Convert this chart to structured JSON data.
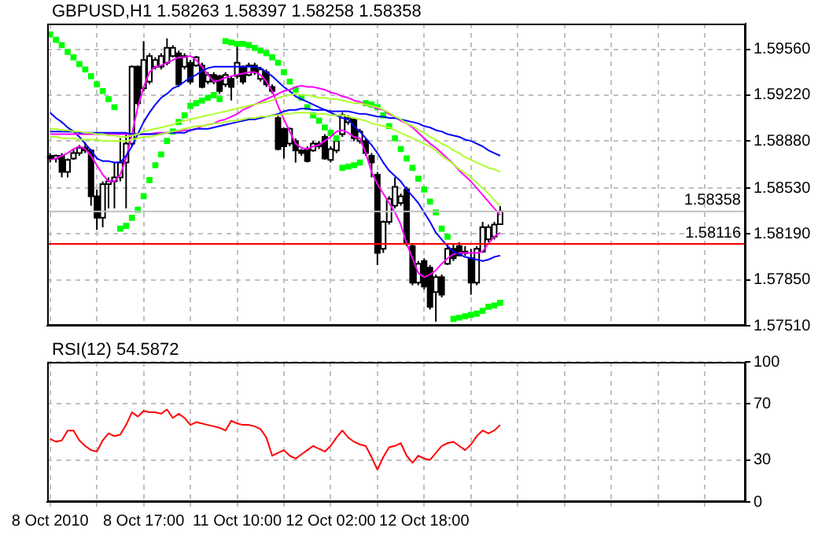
{
  "chart_data": [
    {
      "type": "candlestick",
      "title": "GBPUSD,H1 1.58263 1.58397 1.58258 1.58358",
      "categories": [
        null,
        null,
        null,
        null,
        null,
        null,
        null,
        null,
        null,
        null,
        null,
        null,
        null,
        null,
        null,
        null,
        null,
        null,
        null,
        null,
        null,
        null,
        null,
        null,
        null,
        null,
        null,
        null,
        null,
        null,
        null,
        null,
        null,
        null,
        null,
        null,
        null,
        null,
        null,
        null,
        null,
        null,
        null,
        null,
        null,
        null,
        null,
        null,
        null,
        null,
        null,
        null,
        null,
        null,
        null,
        null,
        null,
        null,
        null,
        null,
        null,
        null,
        null,
        null,
        null,
        null,
        null,
        null,
        null,
        null,
        null,
        null,
        null,
        null,
        null,
        null,
        null,
        null
      ],
      "ohlc": [
        [
          1.5877,
          1.5879,
          1.5872,
          1.5875
        ],
        [
          1.5875,
          1.5878,
          1.5872,
          1.5877
        ],
        [
          1.5877,
          1.5879,
          1.5861,
          1.5865
        ],
        [
          1.5865,
          1.5875,
          1.5861,
          1.5874
        ],
        [
          1.5875,
          1.5882,
          1.5874,
          1.5879
        ],
        [
          1.5879,
          1.5885,
          1.5877,
          1.5883
        ],
        [
          1.5883,
          1.5887,
          1.5879,
          1.5881
        ],
        [
          1.5881,
          1.5882,
          1.584,
          1.5847
        ],
        [
          1.5847,
          1.5852,
          1.5822,
          1.5831
        ],
        [
          1.5831,
          1.5858,
          1.5824,
          1.5856
        ],
        [
          1.5856,
          1.5861,
          1.5838,
          1.5858
        ],
        [
          1.5858,
          1.5872,
          1.5838,
          1.5861
        ],
        [
          1.5861,
          1.589,
          1.5858,
          1.5872
        ],
        [
          1.5872,
          1.5893,
          1.5838,
          1.5886
        ],
        [
          1.5886,
          1.5944,
          1.5884,
          1.5943
        ],
        [
          1.5943,
          1.5944,
          1.5914,
          1.5916
        ],
        [
          1.5927,
          1.5962,
          1.5925,
          1.5948
        ],
        [
          1.5932,
          1.5953,
          1.593,
          1.5951
        ],
        [
          1.5943,
          1.595,
          1.5941,
          1.5948
        ],
        [
          1.5943,
          1.5953,
          1.5941,
          1.5951
        ],
        [
          1.5946,
          1.5964,
          1.5944,
          1.5957
        ],
        [
          1.5951,
          1.5959,
          1.595,
          1.5957
        ],
        [
          1.5953,
          1.5955,
          1.5928,
          1.593
        ],
        [
          1.5943,
          1.5953,
          1.5941,
          1.5951
        ],
        [
          1.5946,
          1.5948,
          1.593,
          1.5932
        ],
        [
          1.5944,
          1.5951,
          1.5943,
          1.595
        ],
        [
          1.5944,
          1.5946,
          1.5927,
          1.5928
        ],
        [
          1.5932,
          1.5939,
          1.593,
          1.5937
        ],
        [
          1.5937,
          1.5939,
          1.593,
          1.5932
        ],
        [
          1.5936,
          1.5937,
          1.5923,
          1.5925
        ],
        [
          1.593,
          1.5939,
          1.5928,
          1.5937
        ],
        [
          1.5934,
          1.5936,
          1.5918,
          1.5928
        ],
        [
          1.5936,
          1.5959,
          1.5934,
          1.5946
        ],
        [
          1.5943,
          1.5944,
          1.593,
          1.5932
        ],
        [
          1.5937,
          1.5946,
          1.5936,
          1.5944
        ],
        [
          1.5944,
          1.5946,
          1.5937,
          1.5939
        ],
        [
          1.5934,
          1.5943,
          1.5932,
          1.5941
        ],
        [
          1.5939,
          1.5941,
          1.5928,
          1.593
        ],
        [
          1.5928,
          1.593,
          1.5923,
          1.5925
        ],
        [
          1.5905,
          1.5907,
          1.5881,
          1.5882
        ],
        [
          1.5897,
          1.5898,
          1.5875,
          1.5884
        ],
        [
          1.5886,
          1.5898,
          1.5884,
          1.5897
        ],
        [
          1.5888,
          1.589,
          1.5872,
          1.5881
        ],
        [
          1.5881,
          1.5882,
          1.5877,
          1.5879
        ],
        [
          1.5882,
          1.5884,
          1.5872,
          1.5873
        ],
        [
          1.5881,
          1.5888,
          1.588,
          1.5886
        ],
        [
          1.5886,
          1.5888,
          1.5882,
          1.5884
        ],
        [
          1.5891,
          1.5893,
          1.5874,
          1.5875
        ],
        [
          1.5874,
          1.5884,
          1.5872,
          1.5882
        ],
        [
          1.5881,
          1.589,
          1.5879,
          1.5888
        ],
        [
          1.5893,
          1.5909,
          1.5891,
          1.5907
        ],
        [
          1.5902,
          1.5907,
          1.59,
          1.5905
        ],
        [
          1.5904,
          1.5905,
          1.5888,
          1.589
        ],
        [
          1.5888,
          1.5897,
          1.5886,
          1.5895
        ],
        [
          1.5888,
          1.589,
          1.5877,
          1.5879
        ],
        [
          1.5877,
          1.5879,
          1.5861,
          1.5872
        ],
        [
          1.5863,
          1.5865,
          1.5796,
          1.5805
        ],
        [
          1.5808,
          1.5829,
          1.5805,
          1.5828
        ],
        [
          1.5828,
          1.5847,
          1.5826,
          1.5845
        ],
        [
          1.584,
          1.5861,
          1.5838,
          1.5854
        ],
        [
          1.5842,
          1.5849,
          1.584,
          1.5847
        ],
        [
          1.5852,
          1.5854,
          1.581,
          1.5812
        ],
        [
          1.581,
          1.5812,
          1.5781,
          1.5783
        ],
        [
          1.5783,
          1.5799,
          1.5781,
          1.5797
        ],
        [
          1.5799,
          1.5801,
          1.5778,
          1.578
        ],
        [
          1.5794,
          1.5796,
          1.5763,
          1.5765
        ],
        [
          1.5776,
          1.5789,
          1.5754,
          1.5787
        ],
        [
          1.5787,
          1.5789,
          1.5772,
          1.5774
        ],
        [
          1.5797,
          1.5812,
          1.5796,
          1.5808
        ],
        [
          1.5808,
          1.5812,
          1.5799,
          1.5801
        ],
        [
          1.581,
          1.5813,
          1.5803,
          1.5803
        ],
        [
          1.5806,
          1.581,
          1.5803,
          1.5805
        ],
        [
          1.5801,
          1.5808,
          1.5774,
          1.5783
        ],
        [
          1.5783,
          1.581,
          1.5781,
          1.5808
        ],
        [
          1.5806,
          1.5828,
          1.5805,
          1.5824
        ],
        [
          1.5815,
          1.5826,
          1.5813,
          1.5824
        ],
        [
          1.5817,
          1.5828,
          1.5815,
          1.5826
        ],
        [
          1.58263,
          1.58397,
          1.58258,
          1.58358
        ]
      ],
      "series": [
        {
          "type": "line",
          "marker": "none",
          "color": "#adff2f",
          "values": [
            1.5897,
            1.5897,
            1.5896,
            1.5896,
            1.5895,
            1.5895,
            1.5894,
            1.5894,
            1.5893,
            1.5893,
            1.5892,
            1.5892,
            1.5891,
            1.5891,
            1.5892,
            1.5893,
            1.5895,
            1.5896,
            1.5897,
            1.5898,
            1.5899,
            1.59,
            1.5902,
            1.5903,
            1.5904,
            1.5905,
            1.5906,
            1.5907,
            1.5908,
            1.5909,
            1.591,
            1.5911,
            1.5912,
            1.5913,
            1.5914,
            1.5915,
            1.5916,
            1.5917,
            1.5918,
            1.592,
            1.5921,
            1.5922,
            1.5923,
            1.5922,
            1.5922,
            1.5921,
            1.592,
            1.592,
            1.5919,
            1.5919,
            1.5918,
            1.5917,
            1.5916,
            1.5916,
            1.5915,
            1.5914,
            1.5913,
            1.5911,
            1.5909,
            1.5906,
            1.5904,
            1.5901,
            1.5899,
            1.5896,
            1.5894,
            1.5891,
            1.5889,
            1.5886,
            1.5884,
            1.5881,
            1.5879,
            1.5876,
            1.5874,
            1.5872,
            1.587,
            1.5868,
            1.5867,
            1.5865
          ]
        },
        {
          "type": "line",
          "marker": "none",
          "color": "#adff2f",
          "values": [
            1.5891,
            1.5891,
            1.589,
            1.589,
            1.589,
            1.5889,
            1.5889,
            1.5889,
            1.5889,
            1.5888,
            1.5888,
            1.5888,
            1.5888,
            1.5888,
            1.5889,
            1.589,
            1.5891,
            1.5891,
            1.5892,
            1.5893,
            1.5894,
            1.5895,
            1.5896,
            1.5897,
            1.5898,
            1.5899,
            1.5899,
            1.59,
            1.5901,
            1.5901,
            1.5902,
            1.5903,
            1.5903,
            1.5904,
            1.5905,
            1.5905,
            1.5906,
            1.5906,
            1.5907,
            1.5907,
            1.5908,
            1.5908,
            1.5909,
            1.5909,
            1.5909,
            1.5908,
            1.5908,
            1.5908,
            1.5907,
            1.5907,
            1.5907,
            1.5906,
            1.5905,
            1.5904,
            1.5903,
            1.5901,
            1.59,
            1.5899,
            1.5898,
            1.5896,
            1.5894,
            1.5892,
            1.589,
            1.5888,
            1.5886,
            1.5884,
            1.5881,
            1.5877,
            1.5874,
            1.5871,
            1.5867,
            1.5864,
            1.5861,
            1.5857,
            1.5853,
            1.5849,
            1.5844,
            1.584
          ]
        },
        {
          "type": "line",
          "marker": "none",
          "color": "#0000ff",
          "values": [
            1.5895,
            1.5895,
            1.5895,
            1.5895,
            1.5895,
            1.5894,
            1.5894,
            1.5894,
            1.5894,
            1.5894,
            1.5894,
            1.5894,
            1.5894,
            1.5894,
            1.5893,
            1.5893,
            1.5893,
            1.5893,
            1.5893,
            1.5893,
            1.5894,
            1.5894,
            1.5894,
            1.5894,
            1.5896,
            1.5897,
            1.5897,
            1.5897,
            1.5898,
            1.5899,
            1.59,
            1.5901,
            1.5902,
            1.5903,
            1.5904,
            1.5904,
            1.5905,
            1.5906,
            1.5907,
            1.5908,
            1.591,
            1.5911,
            1.5911,
            1.5912,
            1.5912,
            1.5911,
            1.5911,
            1.5911,
            1.591,
            1.591,
            1.591,
            1.591,
            1.5909,
            1.5908,
            1.5908,
            1.5907,
            1.5906,
            1.5906,
            1.5905,
            1.5905,
            1.5904,
            1.5903,
            1.5902,
            1.5901,
            1.5899,
            1.5898,
            1.5896,
            1.5895,
            1.5893,
            1.5892,
            1.5891,
            1.5889,
            1.5888,
            1.5886,
            1.5884,
            1.5881,
            1.5879,
            1.5877
          ]
        },
        {
          "type": "line",
          "marker": "none",
          "color": "#ff00ff",
          "values": [
            1.5893,
            1.5893,
            1.5893,
            1.5893,
            1.5893,
            1.5893,
            1.5893,
            1.5893,
            1.5893,
            1.5893,
            1.5893,
            1.5893,
            1.5893,
            1.5893,
            1.5893,
            1.5893,
            1.5893,
            1.5893,
            1.5894,
            1.5894,
            1.5894,
            1.5895,
            1.5895,
            1.5896,
            1.5896,
            1.5897,
            1.5899,
            1.59,
            1.5901,
            1.5903,
            1.5904,
            1.5906,
            1.5908,
            1.5911,
            1.5913,
            1.5915,
            1.5917,
            1.5919,
            1.5921,
            1.5923,
            1.5925,
            1.5926,
            1.5928,
            1.5929,
            1.5928,
            1.5928,
            1.5927,
            1.5926,
            1.5924,
            1.5923,
            1.5921,
            1.592,
            1.5918,
            1.5917,
            1.5915,
            1.5914,
            1.5912,
            1.5911,
            1.5908,
            1.5906,
            1.5903,
            1.5901,
            1.5898,
            1.5894,
            1.589,
            1.5886,
            1.5883,
            1.5879,
            1.5875,
            1.5871,
            1.5866,
            1.5862,
            1.5858,
            1.5853,
            1.5848,
            1.5843,
            1.5838,
            1.5833
          ]
        },
        {
          "type": "line",
          "marker": "none",
          "color": "#0000ff",
          "values": [
            1.5909,
            1.5905,
            1.5902,
            1.5898,
            1.5895,
            1.5891,
            1.5886,
            1.5881,
            1.5875,
            1.5873,
            1.5873,
            1.5872,
            1.5872,
            1.5877,
            1.5884,
            1.5893,
            1.5902,
            1.5909,
            1.5915,
            1.592,
            1.5923,
            1.5927,
            1.5929,
            1.5932,
            1.5935,
            1.5937,
            1.594,
            1.5942,
            1.5943,
            1.5943,
            1.5943,
            1.5943,
            1.5943,
            1.5943,
            1.5943,
            1.5943,
            1.5942,
            1.5939,
            1.5936,
            1.5932,
            1.5928,
            1.5925,
            1.5921,
            1.5919,
            1.5917,
            1.5915,
            1.5913,
            1.5911,
            1.5909,
            1.5907,
            1.5905,
            1.5904,
            1.5899,
            1.5895,
            1.589,
            1.5885,
            1.5879,
            1.5872,
            1.5866,
            1.5862,
            1.5858,
            1.5852,
            1.5847,
            1.5842,
            1.5835,
            1.5828,
            1.582,
            1.5815,
            1.581,
            1.5806,
            1.5804,
            1.5802,
            1.5801,
            1.58,
            1.5799,
            1.58,
            1.5802,
            1.5803
          ]
        },
        {
          "type": "line",
          "marker": "none",
          "color": "#ff00ff",
          "values": [
            1.5874,
            1.5875,
            1.5877,
            1.5879,
            1.5882,
            1.5884,
            1.5882,
            1.5877,
            1.587,
            1.5863,
            1.5858,
            1.5858,
            1.5863,
            1.5875,
            1.5893,
            1.5913,
            1.5928,
            1.5939,
            1.5943,
            1.5944,
            1.5946,
            1.5948,
            1.595,
            1.595,
            1.5951,
            1.5948,
            1.5943,
            1.5937,
            1.5932,
            1.5933,
            1.5935,
            1.5936,
            1.5937,
            1.5938,
            1.5939,
            1.5939,
            1.5937,
            1.5932,
            1.5925,
            1.5914,
            1.5904,
            1.5895,
            1.5886,
            1.5883,
            1.5882,
            1.5884,
            1.5885,
            1.5888,
            1.5891,
            1.5895,
            1.5896,
            1.5894,
            1.5891,
            1.589,
            1.5879,
            1.5865,
            1.5856,
            1.5849,
            1.5842,
            1.5835,
            1.5826,
            1.5812,
            1.5801,
            1.579,
            1.5787,
            1.5789,
            1.5792,
            1.5797,
            1.5801,
            1.5804,
            1.5805,
            1.5805,
            1.5805,
            1.5805,
            1.5806,
            1.5812,
            1.5817,
            1.582
          ]
        },
        {
          "type": "scatter",
          "marker": "square",
          "color": "#00ff00",
          "values": [
            1.5967,
            1.5963,
            1.5959,
            1.5954,
            1.595,
            1.5945,
            1.5941,
            1.5936,
            1.593,
            1.5925,
            1.5919,
            1.5913,
            1.5823,
            1.5825,
            1.5831,
            1.5837,
            1.5847,
            1.5859,
            1.587,
            1.5878,
            1.5888,
            1.5895,
            1.5902,
            1.5907,
            1.5914,
            1.5916,
            1.5918,
            1.592,
            1.5922,
            1.5919,
            1.5962,
            1.5961,
            1.596,
            1.596,
            1.5959,
            1.5957,
            1.5955,
            1.5953,
            1.595,
            1.5946,
            1.5939,
            1.5932,
            1.5926,
            1.592,
            1.5913,
            1.5907,
            1.5903,
            1.5898,
            1.5894,
            1.589,
            1.5868,
            1.5869,
            1.587,
            1.5872,
            1.5916,
            1.5915,
            1.5913,
            1.5907,
            1.5899,
            1.589,
            1.5882,
            1.5875,
            1.5868,
            1.586,
            1.5852,
            1.5843,
            1.5835,
            1.5823,
            1.5817,
            1.5756,
            1.5757,
            1.5758,
            1.5759,
            1.576,
            1.5762,
            1.5765,
            1.5766,
            1.5768
          ]
        }
      ],
      "ylim": [
        1.5751,
        1.5975
      ],
      "yticks": [
        {
          "value": 1.5751,
          "label": "1.57510"
        },
        {
          "value": 1.5785,
          "label": "1.57850"
        },
        {
          "value": 1.5819,
          "label": "1.58190"
        },
        {
          "value": 1.5853,
          "label": "1.58530"
        },
        {
          "value": 1.5888,
          "label": "1.58880"
        },
        {
          "value": 1.5922,
          "label": "1.59220"
        },
        {
          "value": 1.5956,
          "label": "1.59560"
        }
      ],
      "ref_lines": [
        {
          "axis": "y",
          "value": 1.58358,
          "label": "1.58358",
          "color": "#c0c0c0"
        },
        {
          "axis": "y",
          "value": 1.58116,
          "label": "1.58116",
          "color": "#ff0000"
        }
      ],
      "grid": true,
      "tick_labels": "y"
    },
    {
      "type": "line",
      "title": "RSI(12) 54.5872",
      "categories": [
        "8 Oct 2010",
        null,
        null,
        null,
        null,
        null,
        null,
        null,
        null,
        null,
        null,
        null,
        null,
        null,
        null,
        null,
        "8 Oct 17:00",
        null,
        null,
        null,
        null,
        null,
        null,
        null,
        null,
        null,
        null,
        null,
        null,
        null,
        null,
        null,
        "11 Oct 10:00",
        null,
        null,
        null,
        null,
        null,
        null,
        null,
        null,
        null,
        null,
        null,
        null,
        null,
        null,
        null,
        "12 Oct 02:00",
        null,
        null,
        null,
        null,
        null,
        null,
        null,
        null,
        null,
        null,
        null,
        null,
        null,
        null,
        null,
        "12 Oct 18:00",
        null,
        null,
        null,
        null,
        null,
        null,
        null,
        null,
        null,
        null,
        null,
        null,
        null
      ],
      "color": "#ff0000",
      "marker": "none",
      "values": [
        45,
        43,
        44,
        51,
        51,
        44,
        40,
        37,
        36,
        44,
        49,
        47,
        48,
        55,
        64,
        61,
        65,
        64,
        64,
        63,
        66,
        60,
        63,
        60,
        55,
        57,
        56,
        55,
        54,
        53,
        51,
        58,
        56,
        55,
        55,
        54,
        52,
        46,
        33,
        35,
        37,
        33,
        31,
        34,
        37,
        40,
        38,
        36,
        40,
        46,
        51,
        46,
        43,
        41,
        40,
        32,
        23,
        32,
        39,
        40,
        42,
        33,
        28,
        33,
        31,
        30,
        35,
        40,
        42,
        43,
        40,
        37,
        41,
        47,
        51,
        49,
        51,
        55
      ],
      "ylim": [
        0,
        100
      ],
      "yticks": [
        0,
        30,
        70,
        100
      ],
      "grid": true
    }
  ]
}
